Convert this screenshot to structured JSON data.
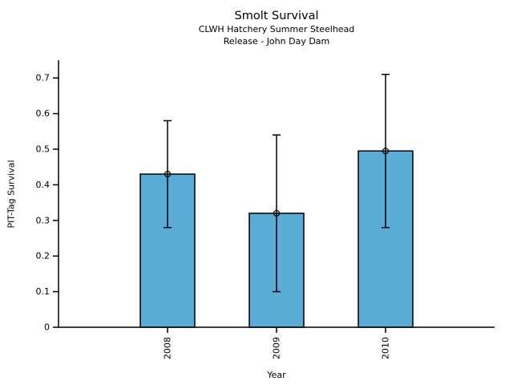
{
  "chart_data": {
    "type": "bar",
    "title": "Smolt Survival",
    "subtitle_line1": "CLWH Hatchery Summer Steelhead",
    "subtitle_line2": "Release - John Day Dam",
    "xlabel": "Year",
    "ylabel": "PIT-Tag Survival",
    "categories": [
      "2008",
      "2009",
      "2010"
    ],
    "values": [
      0.43,
      0.32,
      0.495
    ],
    "error_low": [
      0.28,
      0.1,
      0.28
    ],
    "error_high": [
      0.58,
      0.54,
      0.71
    ],
    "ylim": [
      0,
      0.75
    ],
    "yticks": [
      0,
      0.1,
      0.2,
      0.3,
      0.4,
      0.5,
      0.6,
      0.7
    ],
    "ytick_labels": [
      "0",
      "0.1",
      "0.2",
      "0.3",
      "0.4",
      "0.5",
      "0.6",
      "0.7"
    ],
    "grid": false,
    "legend": "none",
    "bar_color": "#5AACD6",
    "bar_edge_color": "#000000",
    "axis_color": "#000000",
    "text_color": "#000000",
    "marker": "open-circle"
  }
}
